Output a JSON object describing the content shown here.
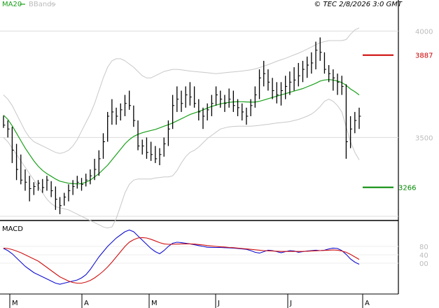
{
  "header": {
    "ma_legend": "MA20",
    "bb_legend": "BBands",
    "copyright": "© TEC 2/8/2026 3:0 GMT"
  },
  "colors": {
    "ma": "#1aa01a",
    "bands": "#c8c8c8",
    "bars": "#000000",
    "macd": "#1010d0",
    "signal": "#d01010",
    "resistance": "#cc0000",
    "support": "#008800",
    "grid": "#dcdcdc",
    "ticklabel": "#bcbcbc"
  },
  "chart_data": [
    {
      "type": "ohlc",
      "title": "",
      "ylim": [
        3120,
        4080
      ],
      "y_ticks": [
        4000,
        3500
      ],
      "x_months": [
        "M",
        "A",
        "M",
        "J",
        "J",
        "A"
      ],
      "overlays": [
        "MA20",
        "BBands"
      ],
      "resistance": 3887,
      "support": 3266,
      "bars": [
        [
          3602,
          3545,
          3558
        ],
        [
          3580,
          3500,
          3540
        ],
        [
          3550,
          3380,
          3440
        ],
        [
          3470,
          3300,
          3350
        ],
        [
          3420,
          3280,
          3300
        ],
        [
          3350,
          3250,
          3290
        ],
        [
          3320,
          3200,
          3260
        ],
        [
          3290,
          3230,
          3270
        ],
        [
          3300,
          3250,
          3285
        ],
        [
          3305,
          3240,
          3265
        ],
        [
          3320,
          3250,
          3300
        ],
        [
          3295,
          3220,
          3250
        ],
        [
          3270,
          3160,
          3210
        ],
        [
          3220,
          3140,
          3180
        ],
        [
          3240,
          3180,
          3220
        ],
        [
          3280,
          3200,
          3250
        ],
        [
          3300,
          3230,
          3270
        ],
        [
          3320,
          3260,
          3290
        ],
        [
          3310,
          3250,
          3280
        ],
        [
          3330,
          3270,
          3300
        ],
        [
          3350,
          3280,
          3320
        ],
        [
          3400,
          3300,
          3350
        ],
        [
          3440,
          3320,
          3400
        ],
        [
          3520,
          3400,
          3480
        ],
        [
          3620,
          3480,
          3600
        ],
        [
          3680,
          3560,
          3620
        ],
        [
          3640,
          3560,
          3600
        ],
        [
          3660,
          3580,
          3630
        ],
        [
          3700,
          3600,
          3660
        ],
        [
          3720,
          3630,
          3650
        ],
        [
          3650,
          3550,
          3580
        ],
        [
          3580,
          3440,
          3460
        ],
        [
          3490,
          3420,
          3460
        ],
        [
          3500,
          3400,
          3430
        ],
        [
          3480,
          3390,
          3420
        ],
        [
          3460,
          3380,
          3400
        ],
        [
          3450,
          3370,
          3420
        ],
        [
          3500,
          3410,
          3470
        ],
        [
          3580,
          3460,
          3540
        ],
        [
          3700,
          3540,
          3650
        ],
        [
          3740,
          3620,
          3680
        ],
        [
          3720,
          3620,
          3660
        ],
        [
          3740,
          3640,
          3700
        ],
        [
          3760,
          3650,
          3690
        ],
        [
          3740,
          3640,
          3660
        ],
        [
          3680,
          3580,
          3620
        ],
        [
          3640,
          3540,
          3600
        ],
        [
          3660,
          3580,
          3630
        ],
        [
          3700,
          3600,
          3660
        ],
        [
          3740,
          3650,
          3700
        ],
        [
          3720,
          3640,
          3680
        ],
        [
          3700,
          3620,
          3660
        ],
        [
          3730,
          3640,
          3680
        ],
        [
          3720,
          3620,
          3650
        ],
        [
          3680,
          3600,
          3640
        ],
        [
          3660,
          3580,
          3620
        ],
        [
          3640,
          3560,
          3600
        ],
        [
          3680,
          3600,
          3650
        ],
        [
          3740,
          3640,
          3700
        ],
        [
          3820,
          3680,
          3780
        ],
        [
          3860,
          3740,
          3800
        ],
        [
          3820,
          3720,
          3760
        ],
        [
          3780,
          3680,
          3720
        ],
        [
          3760,
          3660,
          3700
        ],
        [
          3760,
          3650,
          3720
        ],
        [
          3790,
          3680,
          3740
        ],
        [
          3810,
          3700,
          3760
        ],
        [
          3830,
          3720,
          3770
        ],
        [
          3850,
          3740,
          3790
        ],
        [
          3860,
          3760,
          3820
        ],
        [
          3880,
          3780,
          3840
        ],
        [
          3900,
          3800,
          3850
        ],
        [
          3950,
          3820,
          3910
        ],
        [
          3970,
          3860,
          3900
        ],
        [
          3900,
          3800,
          3820
        ],
        [
          3840,
          3760,
          3800
        ],
        [
          3820,
          3720,
          3780
        ],
        [
          3800,
          3700,
          3760
        ],
        [
          3790,
          3700,
          3740
        ],
        [
          3750,
          3400,
          3480
        ],
        [
          3600,
          3450,
          3540
        ],
        [
          3620,
          3520,
          3580
        ],
        [
          3640,
          3540,
          3600
        ]
      ],
      "ma20": [
        3605,
        3585,
        3555,
        3520,
        3485,
        3450,
        3420,
        3390,
        3365,
        3345,
        3330,
        3318,
        3305,
        3295,
        3290,
        3285,
        3283,
        3282,
        3283,
        3290,
        3300,
        3315,
        3330,
        3350,
        3370,
        3395,
        3420,
        3445,
        3470,
        3490,
        3505,
        3515,
        3522,
        3528,
        3533,
        3538,
        3545,
        3553,
        3560,
        3568,
        3578,
        3588,
        3598,
        3608,
        3615,
        3622,
        3630,
        3638,
        3646,
        3652,
        3658,
        3662,
        3665,
        3667,
        3668,
        3668,
        3667,
        3666,
        3666,
        3670,
        3676,
        3682,
        3688,
        3694,
        3700,
        3706,
        3712,
        3718,
        3724,
        3730,
        3738,
        3746,
        3755,
        3765,
        3770,
        3772,
        3770,
        3765,
        3758,
        3745,
        3728,
        3715,
        3700
      ],
      "bb_upper": [
        3700,
        3680,
        3650,
        3610,
        3570,
        3530,
        3500,
        3480,
        3470,
        3460,
        3450,
        3440,
        3430,
        3425,
        3430,
        3440,
        3460,
        3490,
        3530,
        3570,
        3610,
        3660,
        3720,
        3780,
        3830,
        3860,
        3870,
        3870,
        3860,
        3845,
        3830,
        3810,
        3790,
        3780,
        3780,
        3790,
        3800,
        3810,
        3815,
        3820,
        3820,
        3818,
        3815,
        3812,
        3810,
        3808,
        3806,
        3804,
        3802,
        3800,
        3802,
        3804,
        3806,
        3808,
        3810,
        3812,
        3815,
        3818,
        3822,
        3828,
        3835,
        3842,
        3850,
        3858,
        3865,
        3872,
        3880,
        3888,
        3896,
        3905,
        3915,
        3925,
        3935,
        3945,
        3950,
        3955,
        3955,
        3955,
        3955,
        3960,
        3985,
        4005,
        4015
      ],
      "bb_lower": [
        3500,
        3480,
        3450,
        3420,
        3390,
        3360,
        3330,
        3300,
        3270,
        3240,
        3210,
        3190,
        3175,
        3170,
        3165,
        3160,
        3150,
        3140,
        3130,
        3120,
        3110,
        3100,
        3090,
        3080,
        3075,
        3080,
        3120,
        3180,
        3240,
        3280,
        3300,
        3305,
        3305,
        3305,
        3305,
        3310,
        3312,
        3315,
        3315,
        3320,
        3345,
        3380,
        3410,
        3430,
        3440,
        3455,
        3475,
        3495,
        3510,
        3525,
        3540,
        3545,
        3550,
        3552,
        3553,
        3553,
        3553,
        3553,
        3555,
        3557,
        3560,
        3562,
        3565,
        3568,
        3570,
        3572,
        3575,
        3580,
        3585,
        3592,
        3600,
        3610,
        3625,
        3645,
        3670,
        3680,
        3670,
        3650,
        3620,
        3550,
        3480,
        3430,
        3395
      ]
    },
    {
      "type": "line",
      "title": "MACD",
      "ylim": [
        -120,
        170
      ],
      "y_ticks": [
        "80",
        "40",
        "00"
      ],
      "series": [
        {
          "name": "",
          "values": [
            70,
            60,
            45,
            25,
            5,
            -15,
            -30,
            -45,
            -55,
            -65,
            -75,
            -85,
            -95,
            -100,
            -95,
            -90,
            -85,
            -80,
            -70,
            -55,
            -30,
            0,
            30,
            55,
            80,
            100,
            120,
            135,
            150,
            158,
            150,
            130,
            110,
            90,
            70,
            55,
            45,
            60,
            80,
            95,
            100,
            98,
            95,
            92,
            88,
            84,
            80,
            76,
            75,
            75,
            75,
            74,
            73,
            72,
            70,
            68,
            66,
            60,
            52,
            48,
            55,
            62,
            60,
            55,
            50,
            55,
            60,
            58,
            52,
            55,
            58,
            60,
            62,
            60,
            62,
            68,
            72,
            70,
            60,
            42,
            20,
            5,
            -5
          ]
        },
        {
          "name": "",
          "values": [
            72,
            70,
            65,
            58,
            50,
            40,
            30,
            20,
            10,
            -5,
            -20,
            -35,
            -50,
            -65,
            -75,
            -85,
            -92,
            -95,
            -95,
            -90,
            -82,
            -70,
            -55,
            -38,
            -18,
            5,
            30,
            55,
            80,
            100,
            112,
            120,
            122,
            120,
            114,
            106,
            98,
            92,
            90,
            90,
            91,
            92,
            92,
            92,
            91,
            89,
            87,
            84,
            82,
            80,
            78,
            77,
            75,
            74,
            72,
            70,
            68,
            66,
            64,
            62,
            60,
            59,
            58,
            57,
            56,
            56,
            56,
            56,
            56,
            56,
            57,
            58,
            59,
            60,
            61,
            62,
            63,
            62,
            58,
            52,
            42,
            30,
            18
          ]
        }
      ]
    }
  ]
}
